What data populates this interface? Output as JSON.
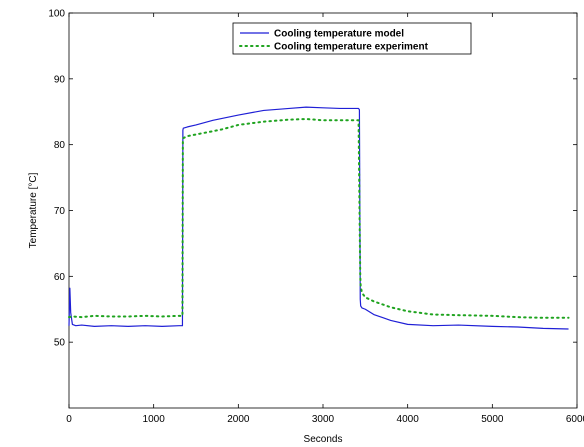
{
  "chart_data": {
    "type": "line",
    "xlabel": "Seconds",
    "ylabel": "Temperature [°C]",
    "xlim": [
      0,
      6000
    ],
    "ylim": [
      40,
      100
    ],
    "xticks": [
      0,
      1000,
      2000,
      3000,
      4000,
      5000,
      6000
    ],
    "yticks": [
      50,
      60,
      70,
      80,
      90,
      100
    ],
    "grid": false,
    "legend": "top-center",
    "series": [
      {
        "name": "Cooling temperature model",
        "color": "#1f1fd6",
        "style": "solid",
        "x": [
          0,
          10,
          20,
          40,
          80,
          150,
          300,
          500,
          700,
          900,
          1100,
          1300,
          1340,
          1345,
          1350,
          1400,
          1500,
          1700,
          2000,
          2300,
          2600,
          2800,
          3000,
          3200,
          3420,
          3430,
          3440,
          3445,
          3460,
          3500,
          3600,
          3800,
          4000,
          4300,
          4600,
          5000,
          5300,
          5600,
          5900
        ],
        "y": [
          52.5,
          58.2,
          54.5,
          52.7,
          52.5,
          52.6,
          52.4,
          52.5,
          52.4,
          52.5,
          52.4,
          52.5,
          52.5,
          82.2,
          82.5,
          82.7,
          83.0,
          83.7,
          84.5,
          85.2,
          85.5,
          85.7,
          85.6,
          85.5,
          85.5,
          85.3,
          56.5,
          55.5,
          55.2,
          55.0,
          54.2,
          53.3,
          52.7,
          52.5,
          52.6,
          52.4,
          52.3,
          52.1,
          52.0
        ]
      },
      {
        "name": "Cooling temperature experiment",
        "color": "#1fa31f",
        "style": "dotted",
        "x": [
          0,
          50,
          150,
          300,
          500,
          700,
          900,
          1100,
          1300,
          1340,
          1345,
          1350,
          1400,
          1600,
          1800,
          2000,
          2300,
          2600,
          2800,
          3000,
          3200,
          3420,
          3440,
          3445,
          3460,
          3500,
          3600,
          3800,
          4000,
          4300,
          4600,
          5000,
          5300,
          5600,
          5900
        ],
        "y": [
          53.8,
          53.9,
          53.8,
          54.0,
          53.9,
          53.9,
          54.0,
          53.9,
          54.0,
          54.0,
          80.8,
          81.0,
          81.3,
          81.8,
          82.3,
          83.0,
          83.5,
          83.8,
          83.9,
          83.7,
          83.7,
          83.7,
          60.0,
          58.5,
          57.5,
          56.8,
          56.2,
          55.3,
          54.7,
          54.2,
          54.1,
          54.0,
          53.8,
          53.7,
          53.7
        ]
      }
    ]
  }
}
